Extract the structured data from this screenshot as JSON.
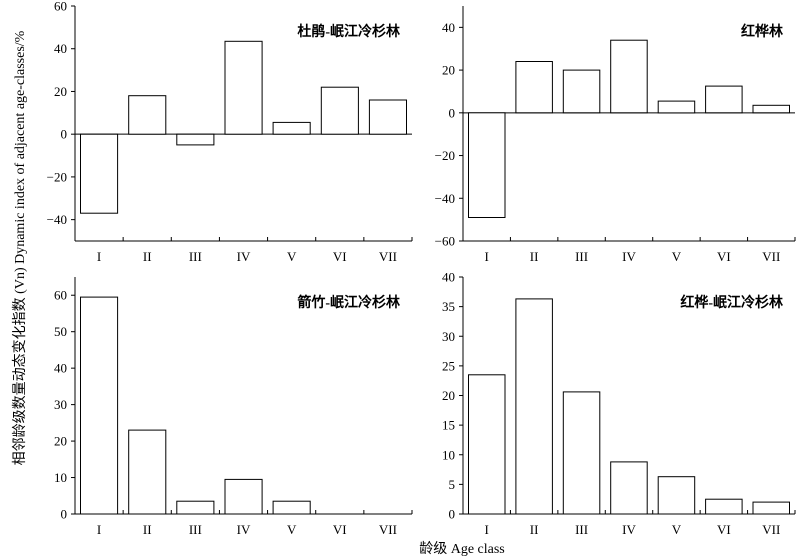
{
  "figure": {
    "xlabel": "龄级 Age class",
    "ylabel": "相邻龄级数量动态变化指数 (Vn) Dynamic index of adjacent age-classes/%"
  },
  "chart_data": [
    {
      "type": "bar",
      "title": "杜鹃-岷江冷杉林",
      "categories": [
        "I",
        "II",
        "III",
        "IV",
        "V",
        "VI",
        "VII"
      ],
      "values": [
        -37,
        18,
        -5,
        43.5,
        5.5,
        22,
        16
      ],
      "ylim": [
        -50,
        60
      ],
      "yticks": [
        -40,
        -20,
        0,
        20,
        40,
        60
      ],
      "grid": false
    },
    {
      "type": "bar",
      "title": "红桦林",
      "categories": [
        "I",
        "II",
        "III",
        "IV",
        "V",
        "VI",
        "VII"
      ],
      "values": [
        -49,
        24,
        20,
        34,
        5.5,
        12.5,
        3.5
      ],
      "ylim": [
        -60,
        50
      ],
      "yticks": [
        -60,
        -40,
        -20,
        0,
        20,
        40
      ],
      "grid": false
    },
    {
      "type": "bar",
      "title": "箭竹-岷江冷杉林",
      "categories": [
        "I",
        "II",
        "III",
        "IV",
        "V",
        "VI",
        "VII"
      ],
      "values": [
        59.5,
        23,
        3.5,
        9.5,
        3.5,
        0,
        0
      ],
      "ylim": [
        0,
        65
      ],
      "yticks": [
        0,
        10,
        20,
        30,
        40,
        50,
        60
      ],
      "grid": false
    },
    {
      "type": "bar",
      "title": "红桦-岷江冷杉林",
      "categories": [
        "I",
        "II",
        "III",
        "IV",
        "V",
        "VI",
        "VII"
      ],
      "values": [
        23.5,
        36.3,
        20.6,
        8.8,
        6.3,
        2.5,
        2
      ],
      "ylim": [
        0,
        40
      ],
      "yticks": [
        0,
        5,
        10,
        15,
        20,
        25,
        30,
        35,
        40
      ],
      "grid": false
    }
  ]
}
